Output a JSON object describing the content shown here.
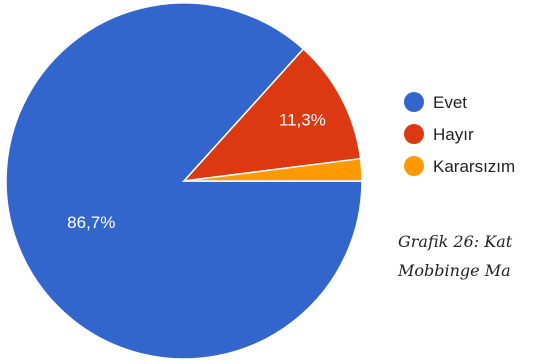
{
  "chart_data": {
    "type": "pie",
    "title": "",
    "categories": [
      "Evet",
      "Hayır",
      "Kararsızım"
    ],
    "values": [
      86.7,
      11.3,
      2.0
    ],
    "value_labels": [
      "86,7%",
      "11,3%",
      ""
    ],
    "colors": [
      "#3366cc",
      "#dc3912",
      "#ff9900"
    ],
    "legend": "right"
  },
  "caption": {
    "line1": "Grafik 26: Kat",
    "line2": "Mobbinge Ma"
  }
}
